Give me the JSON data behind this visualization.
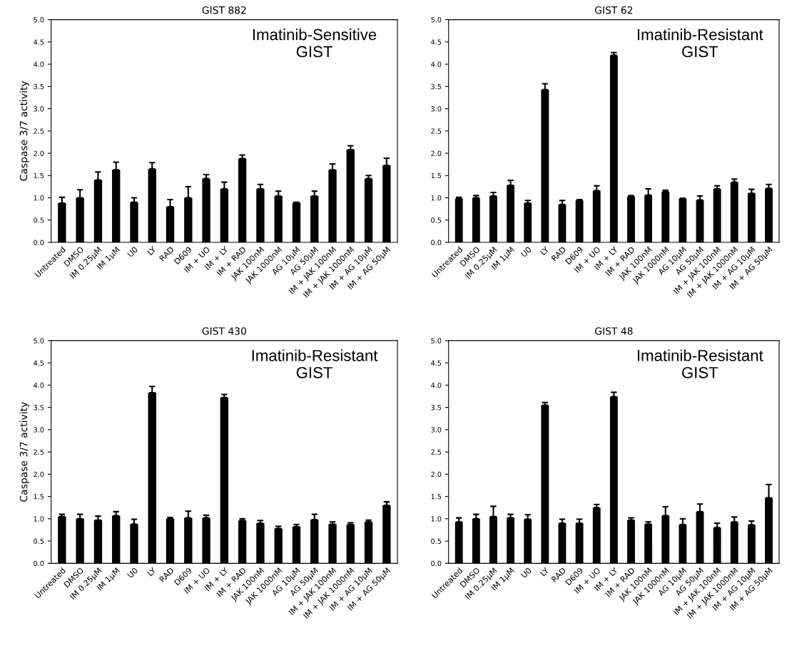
{
  "chart_data": [
    {
      "type": "bar",
      "title": "GIST 882",
      "ylabel": "Caspase 3/7 activity",
      "categories": [
        "Untreated",
        "DMSO",
        "IM 0.25µM",
        "IM 1µM",
        "U0",
        "LY",
        "RAD",
        "D609",
        "IM + UO",
        "IM + LY",
        "IM + RAD",
        "JAK 100nM",
        "JAK 1000nM",
        "AG 10µM",
        "AG 50µM",
        "IM + JAK 100nM",
        "IM + JAK 1000nM",
        "IM + AG 10µM",
        "IM + AG 50µM"
      ],
      "series": [
        {
          "color": "#000000",
          "values": [
            0.88,
            1.0,
            1.4,
            1.63,
            0.9,
            1.65,
            0.8,
            1.0,
            1.43,
            1.2,
            1.88,
            1.2,
            1.04,
            0.89,
            1.04,
            1.63,
            2.08,
            1.43,
            1.73
          ],
          "errors": [
            [
              0.88,
              1.01
            ],
            [
              1.0,
              1.18
            ],
            [
              1.4,
              1.58
            ],
            [
              1.63,
              1.8
            ],
            [
              0.9,
              1.0
            ],
            [
              1.65,
              1.79
            ],
            [
              0.8,
              0.96
            ],
            [
              1.0,
              1.25
            ],
            [
              1.43,
              1.52
            ],
            [
              1.2,
              1.35
            ],
            [
              1.88,
              1.96
            ],
            [
              1.2,
              1.3
            ],
            [
              1.04,
              1.15
            ],
            [
              0.89,
              0.9
            ],
            [
              1.04,
              1.15
            ],
            [
              1.63,
              1.76
            ],
            [
              2.08,
              2.17
            ],
            [
              1.43,
              1.5
            ],
            [
              1.73,
              1.89
            ]
          ]
        }
      ],
      "ylim": [
        0,
        5
      ],
      "yticks": [
        {
          "value": 0,
          "label": "0.0"
        },
        0.5,
        {
          "value": 1,
          "label": "1.0"
        },
        1.5,
        {
          "value": 2,
          "label": "2.0"
        },
        2.5,
        {
          "value": 3,
          "label": "3.0"
        },
        3.5,
        {
          "value": 4,
          "label": "4.0"
        },
        4.5,
        {
          "value": 5,
          "label": "5.0"
        }
      ],
      "annotations": [
        "Imatinib-Sensitive\nGIST"
      ],
      "grid": false,
      "legend": false
    },
    {
      "type": "bar",
      "title": "GIST 62",
      "categories": [
        "Untreated",
        "DMSO",
        "IM 0.25µM",
        "IM 1µM",
        "U0",
        "LY",
        "RAD",
        "D609",
        "IM + UO",
        "IM + LY",
        "IM + RAD",
        "JAK 100nM",
        "JAK 1000nM",
        "AG 10µM",
        "AG 50µM",
        "IM + JAK 100nM",
        "IM + JAK 1000nM",
        "IM + AG 10µM",
        "IM + AG 50µM"
      ],
      "series": [
        {
          "color": "#000000",
          "values": [
            0.98,
            1.0,
            1.04,
            1.28,
            0.88,
            3.43,
            0.85,
            0.94,
            1.16,
            4.2,
            1.03,
            1.06,
            1.14,
            0.98,
            0.95,
            1.2,
            1.35,
            1.1,
            1.21
          ],
          "errors": [
            [
              0.98,
              1.01
            ],
            [
              1.0,
              1.05
            ],
            [
              1.04,
              1.12
            ],
            [
              1.28,
              1.39
            ],
            [
              0.88,
              0.94
            ],
            [
              3.43,
              3.56
            ],
            [
              0.85,
              0.94
            ],
            [
              0.94,
              0.96
            ],
            [
              1.16,
              1.27
            ],
            [
              4.2,
              4.26
            ],
            [
              1.03,
              1.05
            ],
            [
              1.06,
              1.2
            ],
            [
              1.14,
              1.17
            ],
            [
              0.98,
              0.99
            ],
            [
              0.95,
              1.04
            ],
            [
              1.2,
              1.27
            ],
            [
              1.35,
              1.42
            ],
            [
              1.1,
              1.19
            ],
            [
              1.21,
              1.3
            ]
          ]
        }
      ],
      "ylim": [
        0,
        5
      ],
      "yticks": [
        {
          "value": 0,
          "label": "0.0"
        },
        0.5,
        {
          "value": 1,
          "label": "1.0"
        },
        1.5,
        {
          "value": 2,
          "label": "2.0"
        },
        2.5,
        {
          "value": 3,
          "label": "3.0"
        },
        3.5,
        {
          "value": 4,
          "label": "4.0"
        },
        4.5,
        {
          "value": 5,
          "label": "5.0"
        }
      ],
      "annotations": [
        "Imatinib-Resistant\nGIST"
      ],
      "grid": false,
      "legend": false
    },
    {
      "type": "bar",
      "title": "GIST 430",
      "ylabel": "Caspase 3/7 activity",
      "categories": [
        "Untreated",
        "DMSO",
        "IM 0.25µM",
        "IM 1µM",
        "U0",
        "LY",
        "RAD",
        "D609",
        "IM + UO",
        "IM + LY",
        "IM + RAD",
        "JAK 100nM",
        "JAK 1000nM",
        "AG 10µM",
        "AG 50µM",
        "IM + JAK 100nM",
        "IM + JAK 1000nM",
        "IM + AG 10µM",
        "IM + AG 50µM"
      ],
      "series": [
        {
          "color": "#000000",
          "values": [
            1.05,
            1.0,
            0.97,
            1.07,
            0.88,
            3.83,
            1.0,
            1.02,
            1.02,
            3.72,
            0.96,
            0.9,
            0.78,
            0.82,
            0.98,
            0.88,
            0.87,
            0.93,
            1.3
          ],
          "errors": [
            [
              1.05,
              1.1
            ],
            [
              1.0,
              1.1
            ],
            [
              0.97,
              1.06
            ],
            [
              1.07,
              1.16
            ],
            [
              0.88,
              0.99
            ],
            [
              3.83,
              3.97
            ],
            [
              1.0,
              1.03
            ],
            [
              1.02,
              1.17
            ],
            [
              1.02,
              1.08
            ],
            [
              3.72,
              3.79
            ],
            [
              0.96,
              1.0
            ],
            [
              0.9,
              0.96
            ],
            [
              0.78,
              0.83
            ],
            [
              0.82,
              0.87
            ],
            [
              0.98,
              1.1
            ],
            [
              0.88,
              0.93
            ],
            [
              0.87,
              0.91
            ],
            [
              0.93,
              0.97
            ],
            [
              1.3,
              1.38
            ]
          ]
        }
      ],
      "ylim": [
        0,
        5
      ],
      "yticks": [
        {
          "value": 0,
          "label": "0.0"
        },
        0.5,
        {
          "value": 1,
          "label": "1.0"
        },
        1.5,
        {
          "value": 2,
          "label": "2.0"
        },
        2.5,
        {
          "value": 3,
          "label": "3.0"
        },
        3.5,
        {
          "value": 4,
          "label": "4.0"
        },
        4.5,
        {
          "value": 5,
          "label": "5.0"
        }
      ],
      "annotations": [
        "Imatinib-Resistant\nGIST"
      ],
      "grid": false,
      "legend": false
    },
    {
      "type": "bar",
      "title": "GIST 48",
      "categories": [
        "Untreated",
        "DMSO",
        "IM 0.25µM",
        "IM 1µM",
        "U0",
        "LY",
        "RAD",
        "D609",
        "IM + UO",
        "IM + LY",
        "IM + RAD",
        "JAK 100nM",
        "JAK 1000nM",
        "AG 10µM",
        "AG 50µM",
        "IM + JAK 100nM",
        "IM + JAK 1000nM",
        "IM + AG 10µM",
        "IM + AG 50µM"
      ],
      "series": [
        {
          "color": "#000000",
          "values": [
            0.93,
            1.0,
            1.05,
            1.02,
            0.99,
            3.55,
            0.9,
            0.9,
            1.25,
            3.74,
            0.97,
            0.88,
            1.07,
            0.87,
            1.16,
            0.8,
            0.93,
            0.86,
            1.47
          ],
          "errors": [
            [
              0.93,
              1.02
            ],
            [
              1.0,
              1.1
            ],
            [
              1.05,
              1.28
            ],
            [
              1.02,
              1.1
            ],
            [
              0.99,
              1.09
            ],
            [
              3.55,
              3.61
            ],
            [
              0.9,
              0.99
            ],
            [
              0.9,
              0.99
            ],
            [
              1.25,
              1.32
            ],
            [
              3.74,
              3.84
            ],
            [
              0.97,
              1.02
            ],
            [
              0.88,
              0.93
            ],
            [
              1.07,
              1.27
            ],
            [
              0.87,
              1.0
            ],
            [
              1.16,
              1.33
            ],
            [
              0.8,
              0.9
            ],
            [
              0.93,
              1.04
            ],
            [
              0.86,
              0.95
            ],
            [
              1.47,
              1.77
            ]
          ]
        }
      ],
      "ylim": [
        0,
        5
      ],
      "yticks": [
        {
          "value": 0,
          "label": "0.0"
        },
        0.5,
        {
          "value": 1,
          "label": "1.0"
        },
        1.5,
        {
          "value": 2,
          "label": "2.0"
        },
        2.5,
        {
          "value": 3,
          "label": "3.0"
        },
        3.5,
        {
          "value": 4,
          "label": "4.0"
        },
        4.5,
        {
          "value": 5,
          "label": "5.0"
        }
      ],
      "annotations": [
        "Imatinib-Resistant\nGIST"
      ],
      "grid": false,
      "legend": false
    }
  ]
}
